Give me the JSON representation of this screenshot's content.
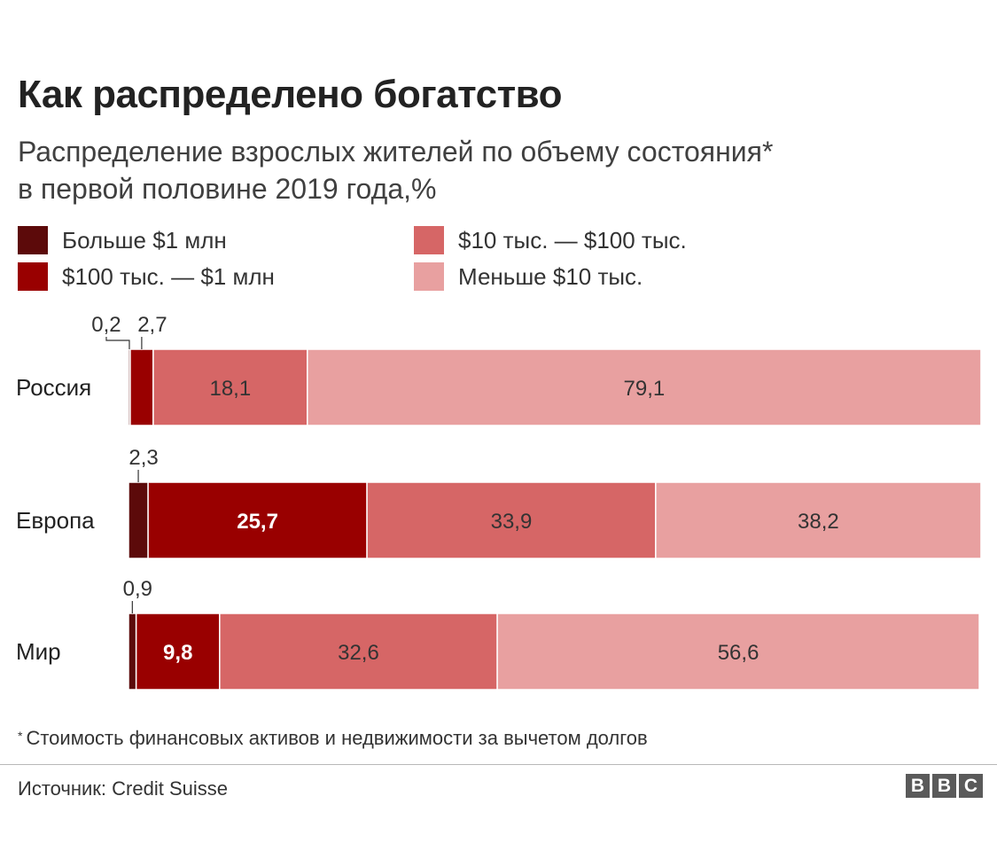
{
  "chart_data": {
    "type": "bar",
    "orientation": "horizontal",
    "stacked": true,
    "title": "Как распределено богатство",
    "subtitle_line1": "Распределение взрослых жителей по объему состояния*",
    "subtitle_line2": "в первой половине 2019 года,%",
    "categories": [
      "Россия",
      "Европа",
      "Мир"
    ],
    "series": [
      {
        "name": "Больше $1 млн",
        "color": "#5c0a0a",
        "values": [
          0.2,
          2.3,
          0.9
        ]
      },
      {
        "name": "$100 тыс. — $1 млн",
        "color": "#990000",
        "values": [
          2.7,
          25.7,
          9.8
        ]
      },
      {
        "name": "$10 тыс. — $100 тыс.",
        "color": "#d66666",
        "values": [
          18.1,
          33.9,
          32.6
        ]
      },
      {
        "name": "Меньше $10 тыс.",
        "color": "#e8a0a0",
        "values": [
          79.1,
          38.2,
          56.6
        ]
      }
    ],
    "value_labels": [
      [
        "0,2",
        "2,7",
        "18,1",
        "79,1"
      ],
      [
        "2,3",
        "25,7",
        "33,9",
        "38,2"
      ],
      [
        "0,9",
        "9,8",
        "32,6",
        "56,6"
      ]
    ],
    "xlim": [
      0,
      100
    ]
  },
  "footnote": {
    "marker": "*",
    "text": "Стоимость финансовых активов и недвижимости за вычетом долгов"
  },
  "source": "Источник: Credit Suisse",
  "logo": [
    "B",
    "B",
    "C"
  ]
}
